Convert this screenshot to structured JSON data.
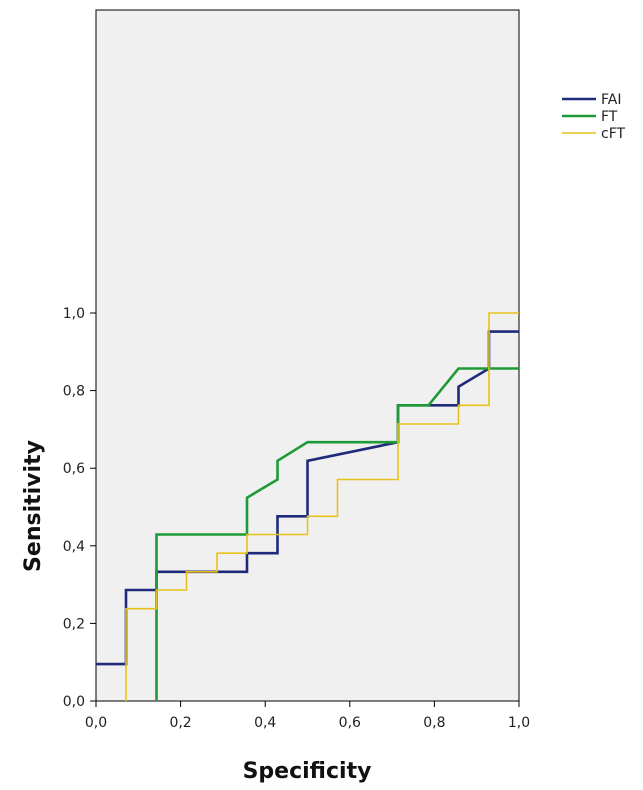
{
  "chart_data": {
    "type": "line",
    "title": "",
    "xlabel": "Specificity",
    "ylabel": "Sensitivity",
    "xlim": [
      0,
      1
    ],
    "ylim": [
      0,
      1
    ],
    "x_ticks": [
      "0,0",
      "0,2",
      "0,4",
      "0,6",
      "0,8",
      "1,0"
    ],
    "y_ticks": [
      "0,0",
      "0,2",
      "0,4",
      "0,6",
      "0,8",
      "1,0"
    ],
    "grid": false,
    "legend_position": "top-right",
    "series": [
      {
        "name": "FAI",
        "color": "#1f2a7a",
        "x": [
          0,
          0.071,
          0.071,
          0.143,
          0.143,
          0.357,
          0.357,
          0.429,
          0.429,
          0.5,
          0.5,
          0.714,
          0.714,
          0.857,
          0.857,
          0.929,
          0.929,
          1.0
        ],
        "y": [
          0.095,
          0.095,
          0.286,
          0.286,
          0.333,
          0.333,
          0.381,
          0.381,
          0.476,
          0.476,
          0.619,
          0.667,
          0.762,
          0.762,
          0.81,
          0.857,
          0.952,
          0.952
        ]
      },
      {
        "name": "FT",
        "color": "#1e9a38",
        "x": [
          0.143,
          0.143,
          0.357,
          0.357,
          0.429,
          0.429,
          0.5,
          0.714,
          0.714,
          0.786,
          0.857,
          1.0
        ],
        "y": [
          0.0,
          0.429,
          0.429,
          0.524,
          0.571,
          0.619,
          0.667,
          0.667,
          0.762,
          0.762,
          0.857,
          0.857
        ]
      },
      {
        "name": "cFT",
        "color": "#e8c21a",
        "x": [
          0.071,
          0.071,
          0.143,
          0.143,
          0.214,
          0.214,
          0.286,
          0.286,
          0.357,
          0.357,
          0.5,
          0.5,
          0.571,
          0.571,
          0.714,
          0.714,
          0.857,
          0.857,
          0.929,
          0.929,
          1.0
        ],
        "y": [
          0.0,
          0.238,
          0.238,
          0.286,
          0.286,
          0.333,
          0.333,
          0.381,
          0.381,
          0.429,
          0.429,
          0.476,
          0.476,
          0.571,
          0.571,
          0.714,
          0.714,
          0.762,
          0.762,
          1.0,
          1.0
        ]
      }
    ]
  }
}
